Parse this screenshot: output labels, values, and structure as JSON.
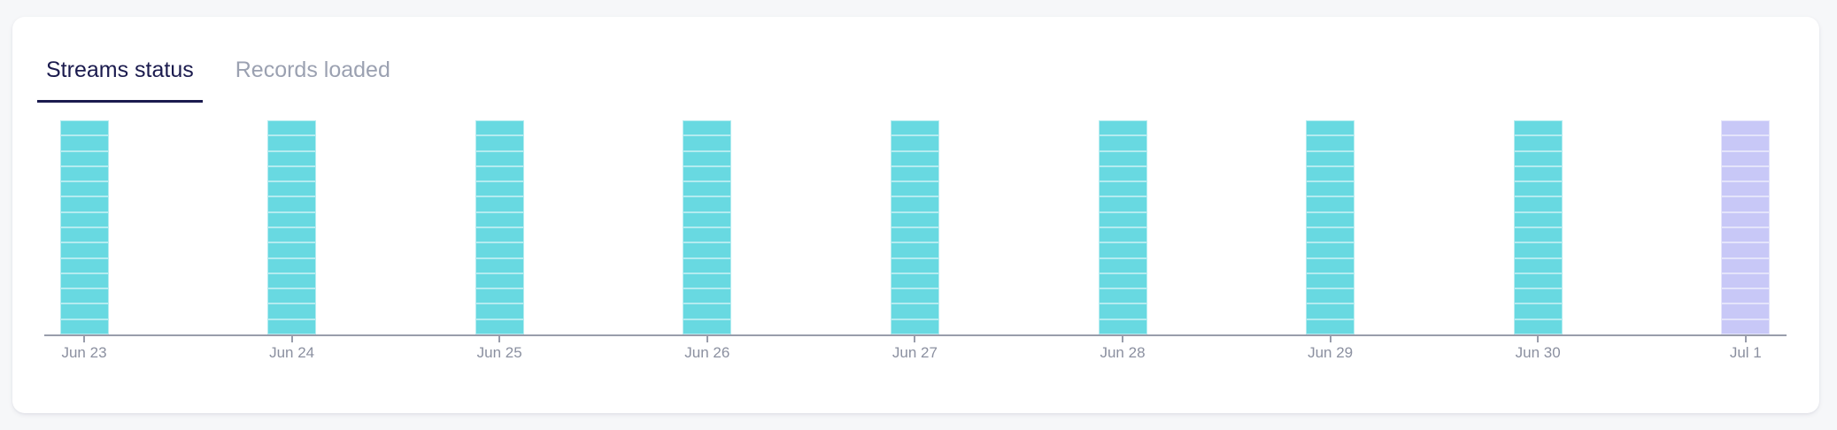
{
  "card": {
    "tabs": [
      {
        "label": "Streams status",
        "active": true
      },
      {
        "label": "Records loaded",
        "active": false
      }
    ]
  },
  "colors": {
    "accent_navy": "#1b1b4e",
    "inactive_tab_gray": "#9ba1b1",
    "axis_gray": "#999dab",
    "axis_label_gray": "#8b90a0",
    "bar_synced_teal": "#68d9e1",
    "bar_in_progress_lavender": "#c8c8f7",
    "segment_separator": "rgba(255,255,255,0.5)",
    "card_background": "#ffffff",
    "page_background": "#f6f7f9"
  },
  "chart_data": {
    "type": "bar",
    "subtype": "stacked-daily-stream-status-histogram",
    "title": "",
    "xlabel": "",
    "ylabel": "",
    "categories": [
      "Jun 23",
      "Jun 24",
      "Jun 25",
      "Jun 26",
      "Jun 27",
      "Jun 28",
      "Jun 29",
      "Jun 30",
      "Jul 1"
    ],
    "bars": [
      {
        "date": "Jun 23",
        "stream_segments": 14,
        "status": "synced"
      },
      {
        "date": "Jun 24",
        "stream_segments": 14,
        "status": "synced"
      },
      {
        "date": "Jun 25",
        "stream_segments": 14,
        "status": "synced"
      },
      {
        "date": "Jun 26",
        "stream_segments": 14,
        "status": "synced"
      },
      {
        "date": "Jun 27",
        "stream_segments": 14,
        "status": "synced"
      },
      {
        "date": "Jun 28",
        "stream_segments": 14,
        "status": "synced"
      },
      {
        "date": "Jun 29",
        "stream_segments": 14,
        "status": "synced"
      },
      {
        "date": "Jun 30",
        "stream_segments": 14,
        "status": "synced"
      },
      {
        "date": "Jul 1",
        "stream_segments": 14,
        "status": "in_progress"
      }
    ],
    "segment_colors": {
      "synced": "#68d9e1",
      "in_progress": "#c8c8f7"
    },
    "separator_color": "rgba(255,255,255,0.5)",
    "ylim": [
      0,
      14
    ],
    "grid": false,
    "legend": "none"
  }
}
